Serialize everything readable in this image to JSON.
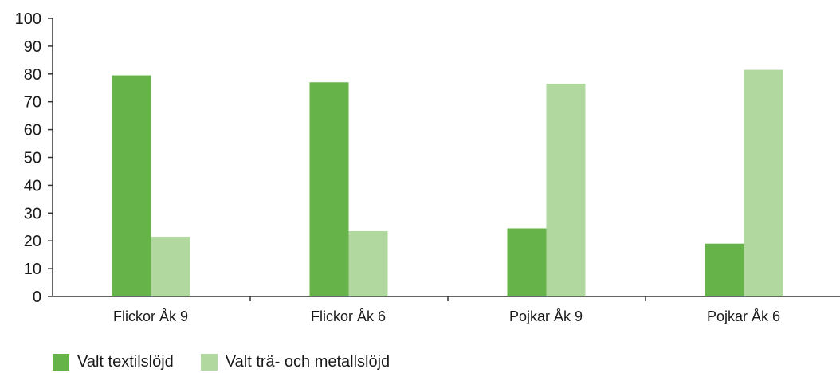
{
  "chart_data": {
    "type": "bar",
    "categories": [
      "Flickor Åk 9",
      "Flickor Åk 6",
      "Pojkar Åk 9",
      "Pojkar Åk 6"
    ],
    "series": [
      {
        "name": "Valt textilslöjd",
        "values": [
          79.5,
          77,
          24.5,
          19
        ],
        "color": "#66b34a"
      },
      {
        "name": "Valt trä- och metallslöjd",
        "values": [
          21.5,
          23.5,
          76.5,
          81.5
        ],
        "color": "#b1d89e"
      }
    ],
    "ylim": [
      0,
      100
    ],
    "yticks": [
      0,
      10,
      20,
      30,
      40,
      50,
      60,
      70,
      80,
      90,
      100
    ],
    "legend_position": "bottom-left",
    "grid": false
  }
}
